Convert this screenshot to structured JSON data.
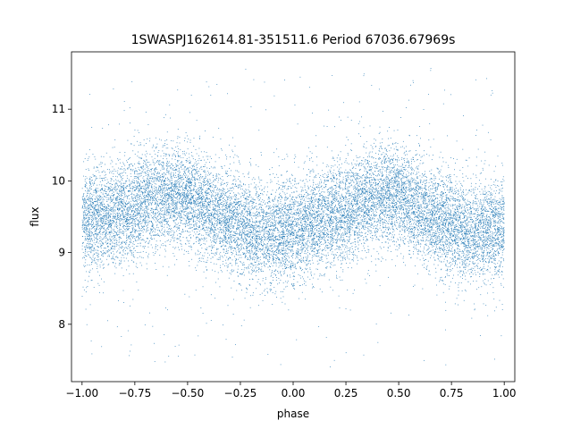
{
  "chart_data": {
    "type": "scatter",
    "title": "1SWASPJ162614.81-351511.6 Period 67036.67969s",
    "xlabel": "phase",
    "ylabel": "flux",
    "xlim": [
      -1.05,
      1.05
    ],
    "ylim": [
      7.2,
      11.8
    ],
    "xticks": [
      -1.0,
      -0.75,
      -0.5,
      -0.25,
      0.0,
      0.25,
      0.5,
      0.75,
      1.0
    ],
    "xtick_labels": [
      "−1.00",
      "−0.75",
      "−0.50",
      "−0.25",
      "0.00",
      "0.25",
      "0.50",
      "0.75",
      "1.00"
    ],
    "yticks": [
      8,
      9,
      10,
      11
    ],
    "ytick_labels": [
      "8",
      "9",
      "10",
      "11"
    ],
    "grid": false,
    "legend": "none",
    "marker_color": "#1f77b4",
    "series": [
      {
        "profile_phase": [
          -1.0,
          -0.875,
          -0.75,
          -0.625,
          -0.5,
          -0.375,
          -0.25,
          -0.125,
          0.0,
          0.125,
          0.25,
          0.375,
          0.5,
          0.625,
          0.75,
          0.875,
          1.0
        ],
        "profile_flux": [
          9.45,
          9.52,
          9.62,
          9.8,
          9.78,
          9.55,
          9.38,
          9.25,
          9.3,
          9.45,
          9.55,
          9.78,
          9.78,
          9.55,
          9.35,
          9.3,
          9.35
        ],
        "scatter_sigma": 0.35,
        "outlier_range": [
          7.4,
          11.6
        ],
        "point_count": 16000
      }
    ]
  }
}
